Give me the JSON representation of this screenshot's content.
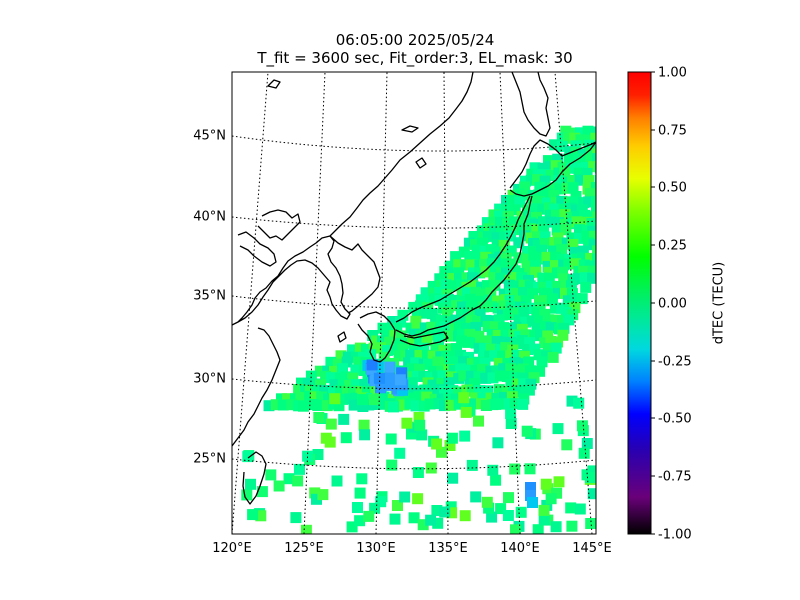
{
  "title": {
    "line1": "06:05:00 2025/05/24",
    "line2": "T_fit = 3600 sec, Fit_order:3, EL_mask: 30"
  },
  "map": {
    "lat_range": [
      20,
      49
    ],
    "lon_range": [
      120,
      145
    ],
    "lat_ticks": [
      "25°N",
      "30°N",
      "35°N",
      "40°N",
      "45°N"
    ],
    "lon_ticks": [
      "120°E",
      "125°E",
      "130°E",
      "135°E",
      "140°E",
      "145°E"
    ],
    "projection": "conic (curved graticule)",
    "background_color": "#ffffff",
    "coastline_color": "#000000"
  },
  "colorbar": {
    "label": "dTEC (TECU)",
    "ticks": [
      "1.00",
      "0.75",
      "0.50",
      "0.25",
      "0.00",
      "-0.25",
      "-0.50",
      "-0.75",
      "-1.00"
    ],
    "range": [
      -1.0,
      1.0
    ],
    "colormap": "nipy_spectral-like"
  },
  "data_description": {
    "dominant_color": "#00ff80",
    "dominant_value_tecu": 0.05,
    "negative_patch_color": "#1e90ff",
    "negative_patch_value_tecu": -0.35
  }
}
